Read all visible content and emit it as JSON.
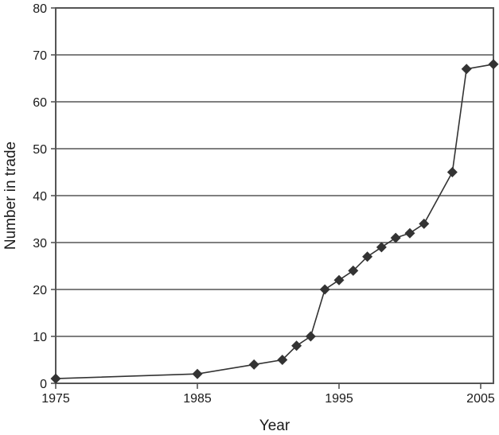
{
  "chart_data": {
    "type": "line",
    "title": "",
    "xlabel": "Year",
    "ylabel": "Number in trade",
    "x": [
      1975,
      1985,
      1989,
      1991,
      1992,
      1993,
      1994,
      1995,
      1996,
      1997,
      1998,
      1999,
      2000,
      2001,
      2003,
      2004,
      2006
    ],
    "series": [
      {
        "name": "Number in trade",
        "values": [
          1,
          2,
          4,
          5,
          8,
          10,
          20,
          22,
          24,
          27,
          29,
          31,
          32,
          34,
          45,
          67,
          68
        ],
        "marker": "diamond",
        "color": "#333333"
      }
    ],
    "xlim": [
      1975,
      2005.9
    ],
    "ylim": [
      0,
      80
    ],
    "xticks": [
      1975,
      1985,
      1995,
      2005
    ],
    "yticks": [
      0,
      10,
      20,
      30,
      40,
      50,
      60,
      70,
      80
    ],
    "grid": {
      "horizontal": true,
      "vertical": false
    },
    "legend": null
  }
}
